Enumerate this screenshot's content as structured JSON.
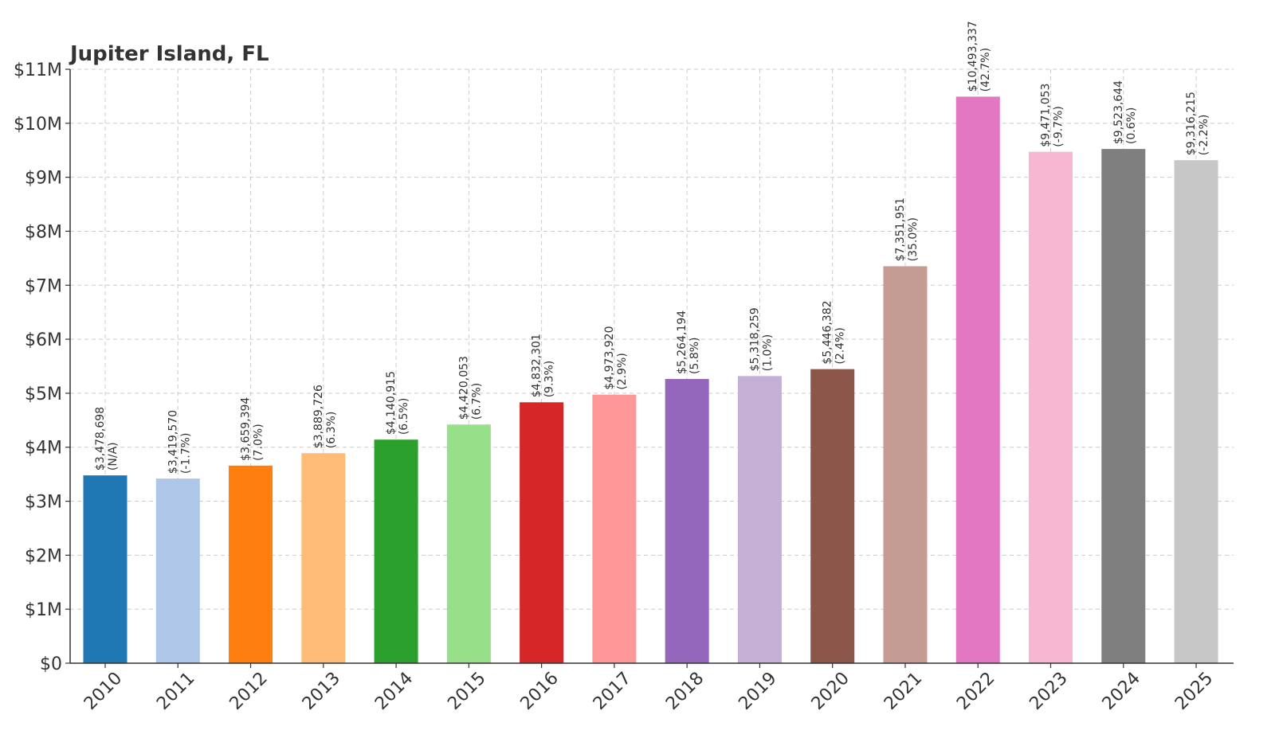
{
  "chart_data": {
    "type": "bar",
    "title": "Jupiter Island, FL",
    "xlabel": "",
    "ylabel": "",
    "ylim": [
      0,
      11000000
    ],
    "grid": true,
    "y_ticks": [
      0,
      1000000,
      2000000,
      3000000,
      4000000,
      5000000,
      6000000,
      7000000,
      8000000,
      9000000,
      10000000,
      11000000
    ],
    "y_tick_labels": [
      "$0",
      "$1M",
      "$2M",
      "$3M",
      "$4M",
      "$5M",
      "$6M",
      "$7M",
      "$8M",
      "$9M",
      "$10M",
      "$11M"
    ],
    "categories": [
      "2010",
      "2011",
      "2012",
      "2013",
      "2014",
      "2015",
      "2016",
      "2017",
      "2018",
      "2019",
      "2020",
      "2021",
      "2022",
      "2023",
      "2024",
      "2025"
    ],
    "values": [
      3478698,
      3419570,
      3659394,
      3889726,
      4140915,
      4420053,
      4832301,
      4973920,
      5264194,
      5318259,
      5446382,
      7351951,
      10493337,
      9471053,
      9523644,
      9316215
    ],
    "value_labels": [
      "$3,478,698",
      "$3,419,570",
      "$3,659,394",
      "$3,889,726",
      "$4,140,915",
      "$4,420,053",
      "$4,832,301",
      "$4,973,920",
      "$5,264,194",
      "$5,318,259",
      "$5,446,382",
      "$7,351,951",
      "$10,493,337",
      "$9,471,053",
      "$9,523,644",
      "$9,316,215"
    ],
    "change_labels": [
      "(N/A)",
      "(-1.7%)",
      "(7.0%)",
      "(6.3%)",
      "(6.5%)",
      "(6.7%)",
      "(9.3%)",
      "(2.9%)",
      "(5.8%)",
      "(1.0%)",
      "(2.4%)",
      "(35.0%)",
      "(42.7%)",
      "(-9.7%)",
      "(0.6%)",
      "(-2.2%)"
    ],
    "colors": [
      "#1f77b4",
      "#aec7e8",
      "#ff7f0e",
      "#ffbb78",
      "#2ca02c",
      "#98df8a",
      "#d62728",
      "#ff9896",
      "#9467bd",
      "#c5b0d5",
      "#8c564b",
      "#c49c94",
      "#e377c2",
      "#f7b6d2",
      "#7f7f7f",
      "#c7c7c7"
    ]
  }
}
